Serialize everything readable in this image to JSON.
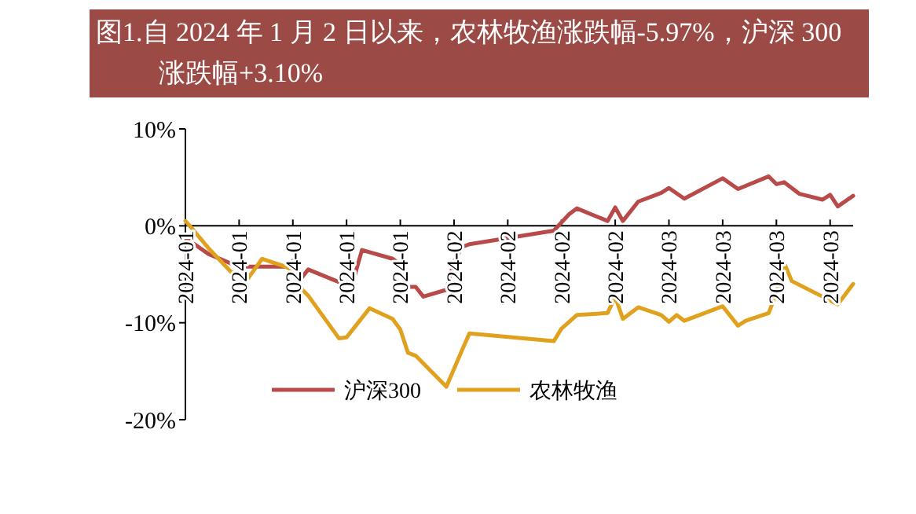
{
  "chart_data": {
    "type": "line",
    "title": "图1.自 2024 年 1 月 2 日以来，农林牧渔涨跌幅-5.97%，沪深 300 涨跌幅+3.10%",
    "xlim": [
      "2024-01-02",
      "2024-03-29"
    ],
    "xticks": [
      {
        "value": "2024-01-02",
        "label": "2024-01"
      },
      {
        "value": "2024-01-09",
        "label": "2024-01"
      },
      {
        "value": "2024-01-16",
        "label": "2024-01"
      },
      {
        "value": "2024-01-23",
        "label": "2024-01"
      },
      {
        "value": "2024-01-30",
        "label": "2024-01"
      },
      {
        "value": "2024-02-06",
        "label": "2024-02"
      },
      {
        "value": "2024-02-13",
        "label": "2024-02"
      },
      {
        "value": "2024-02-20",
        "label": "2024-02"
      },
      {
        "value": "2024-02-27",
        "label": "2024-02"
      },
      {
        "value": "2024-03-05",
        "label": "2024-03"
      },
      {
        "value": "2024-03-12",
        "label": "2024-03"
      },
      {
        "value": "2024-03-19",
        "label": "2024-03"
      },
      {
        "value": "2024-03-26",
        "label": "2024-03"
      }
    ],
    "ylim": [
      -20,
      10
    ],
    "yticks": [
      {
        "value": -20,
        "label": "-20%"
      },
      {
        "value": -10,
        "label": "-10%"
      },
      {
        "value": 0,
        "label": "0%"
      },
      {
        "value": 10,
        "label": "10%"
      }
    ],
    "grid": false,
    "legend": "bottom",
    "marker": "none",
    "line_style": "solid",
    "series": [
      {
        "name": "沪深300",
        "color": "#b84a4a",
        "x": [
          "2024-01-02",
          "2024-01-03",
          "2024-01-05",
          "2024-01-08",
          "2024-01-10",
          "2024-01-15",
          "2024-01-16",
          "2024-01-17",
          "2024-01-18",
          "2024-01-22",
          "2024-01-23",
          "2024-01-24",
          "2024-01-25",
          "2024-01-29",
          "2024-01-30",
          "2024-01-31",
          "2024-02-01",
          "2024-02-02",
          "2024-02-05",
          "2024-02-06",
          "2024-02-07",
          "2024-02-08",
          "2024-02-19",
          "2024-02-21",
          "2024-02-22",
          "2024-02-26",
          "2024-02-27",
          "2024-02-28",
          "2024-03-01",
          "2024-03-04",
          "2024-03-05",
          "2024-03-07",
          "2024-03-12",
          "2024-03-14",
          "2024-03-18",
          "2024-03-19",
          "2024-03-20",
          "2024-03-22",
          "2024-03-25",
          "2024-03-26",
          "2024-03-27",
          "2024-03-29"
        ],
        "values": [
          -1.2,
          -1.8,
          -2.9,
          -3.9,
          -4.2,
          -4.2,
          -3.6,
          -5.5,
          -4.5,
          -5.8,
          -6.1,
          -5.3,
          -2.5,
          -3.4,
          -4.0,
          -6.3,
          -6.3,
          -7.3,
          -6.6,
          -3.7,
          -2.2,
          -1.9,
          -0.5,
          1.2,
          1.8,
          0.5,
          1.9,
          0.5,
          2.5,
          3.4,
          3.9,
          2.8,
          4.9,
          3.8,
          5.1,
          4.3,
          4.5,
          3.3,
          2.7,
          3.2,
          2.0,
          3.1
        ]
      },
      {
        "name": "农林牧渔",
        "color": "#e0a21e",
        "x": [
          "2024-01-02",
          "2024-01-03",
          "2024-01-05",
          "2024-01-08",
          "2024-01-09",
          "2024-01-10",
          "2024-01-12",
          "2024-01-15",
          "2024-01-16",
          "2024-01-17",
          "2024-01-18",
          "2024-01-22",
          "2024-01-23",
          "2024-01-24",
          "2024-01-26",
          "2024-01-29",
          "2024-01-30",
          "2024-01-31",
          "2024-02-01",
          "2024-02-05",
          "2024-02-07",
          "2024-02-08",
          "2024-02-19",
          "2024-02-20",
          "2024-02-22",
          "2024-02-26",
          "2024-02-27",
          "2024-02-28",
          "2024-03-01",
          "2024-03-04",
          "2024-03-05",
          "2024-03-06",
          "2024-03-07",
          "2024-03-12",
          "2024-03-14",
          "2024-03-15",
          "2024-03-18",
          "2024-03-19",
          "2024-03-20",
          "2024-03-21",
          "2024-03-25",
          "2024-03-27",
          "2024-03-29"
        ],
        "values": [
          0.5,
          -0.4,
          -2.3,
          -4.8,
          -4.9,
          -5.6,
          -3.4,
          -4.2,
          -4.6,
          -6.4,
          -7.2,
          -11.6,
          -11.5,
          -10.5,
          -8.5,
          -9.6,
          -10.7,
          -13.1,
          -13.4,
          -16.6,
          -12.9,
          -11.1,
          -11.9,
          -10.6,
          -9.2,
          -9.0,
          -7.3,
          -9.6,
          -8.4,
          -9.2,
          -9.9,
          -9.2,
          -9.8,
          -8.3,
          -10.3,
          -9.8,
          -9.0,
          -6.9,
          -3.8,
          -5.7,
          -7.3,
          -8.1,
          -6.0
        ]
      }
    ]
  }
}
